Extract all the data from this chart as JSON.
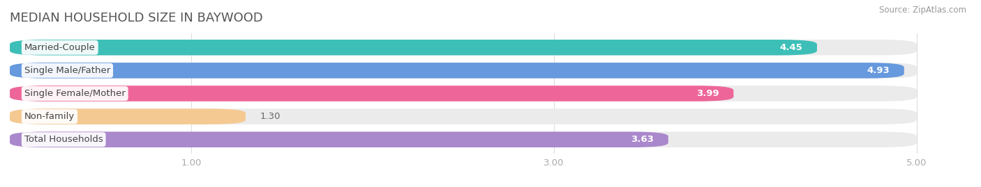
{
  "title": "MEDIAN HOUSEHOLD SIZE IN BAYWOOD",
  "source": "Source: ZipAtlas.com",
  "categories": [
    "Married-Couple",
    "Single Male/Father",
    "Single Female/Mother",
    "Non-family",
    "Total Households"
  ],
  "values": [
    4.45,
    4.93,
    3.99,
    1.3,
    3.63
  ],
  "bar_colors": [
    "#3dbfb8",
    "#6699dd",
    "#ee6699",
    "#f5c992",
    "#aa88cc"
  ],
  "bg_color": "#ffffff",
  "bar_bg_color": "#ebebeb",
  "xlim": [
    0,
    5.3
  ],
  "xmin": 0,
  "xmax": 5.0,
  "xticks": [
    1.0,
    3.0,
    5.0
  ],
  "label_fontsize": 9.5,
  "value_fontsize": 9.5,
  "title_fontsize": 13,
  "source_fontsize": 8.5
}
